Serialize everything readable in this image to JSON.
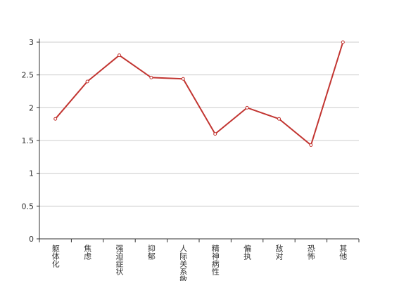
{
  "chart_data": {
    "type": "line",
    "categories": [
      "躯体化",
      "焦虑",
      "强迫症状",
      "抑郁",
      "人际关系敏感",
      "精神病性",
      "偏执",
      "敌对",
      "恐怖",
      "其他"
    ],
    "series": [
      {
        "color": "#c23531",
        "values": [
          1.83,
          2.4,
          2.8,
          2.46,
          2.44,
          1.6,
          2.0,
          1.83,
          1.43,
          3.0
        ]
      }
    ],
    "ylim": [
      0,
      3
    ],
    "yticks": [
      0,
      0.5,
      1,
      1.5,
      2,
      2.5,
      3
    ],
    "grid": true
  }
}
